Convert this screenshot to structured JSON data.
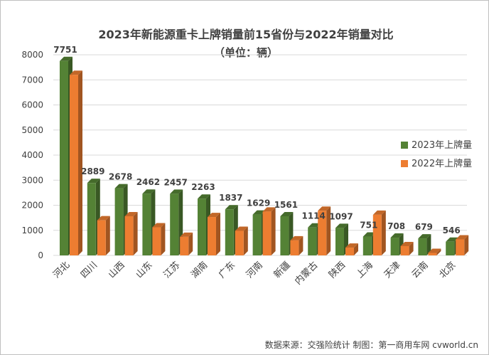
{
  "chart_data": {
    "type": "bar",
    "title": "2023年新能源重卡上牌销量前15省份与2022年销量对比",
    "subtitle": "（单位：辆）",
    "categories": [
      "河北",
      "四川",
      "山西",
      "山东",
      "江苏",
      "湖南",
      "广东",
      "河南",
      "新疆",
      "内蒙古",
      "陕西",
      "上海",
      "天津",
      "云南",
      "北京"
    ],
    "series": [
      {
        "name": "2023年上牌量",
        "color": "#548235",
        "values": [
          7751,
          2889,
          2678,
          2462,
          2457,
          2263,
          1837,
          1629,
          1561,
          1114,
          1097,
          751,
          708,
          679,
          546
        ],
        "data_labels": true
      },
      {
        "name": "2022年上牌量",
        "color": "#ed7d31",
        "values": [
          7200,
          1400,
          1560,
          1120,
          740,
          1530,
          980,
          1750,
          600,
          1780,
          310,
          1620,
          370,
          100,
          640
        ],
        "data_labels": false
      }
    ],
    "ylim": [
      0,
      8000
    ],
    "yticks": [
      0,
      1000,
      2000,
      3000,
      4000,
      5000,
      6000,
      7000,
      8000
    ],
    "grid": true,
    "legend_position": "right"
  },
  "source_note": "数据来源：交强险统计  制图：第一商用车网 cvworld.cn"
}
